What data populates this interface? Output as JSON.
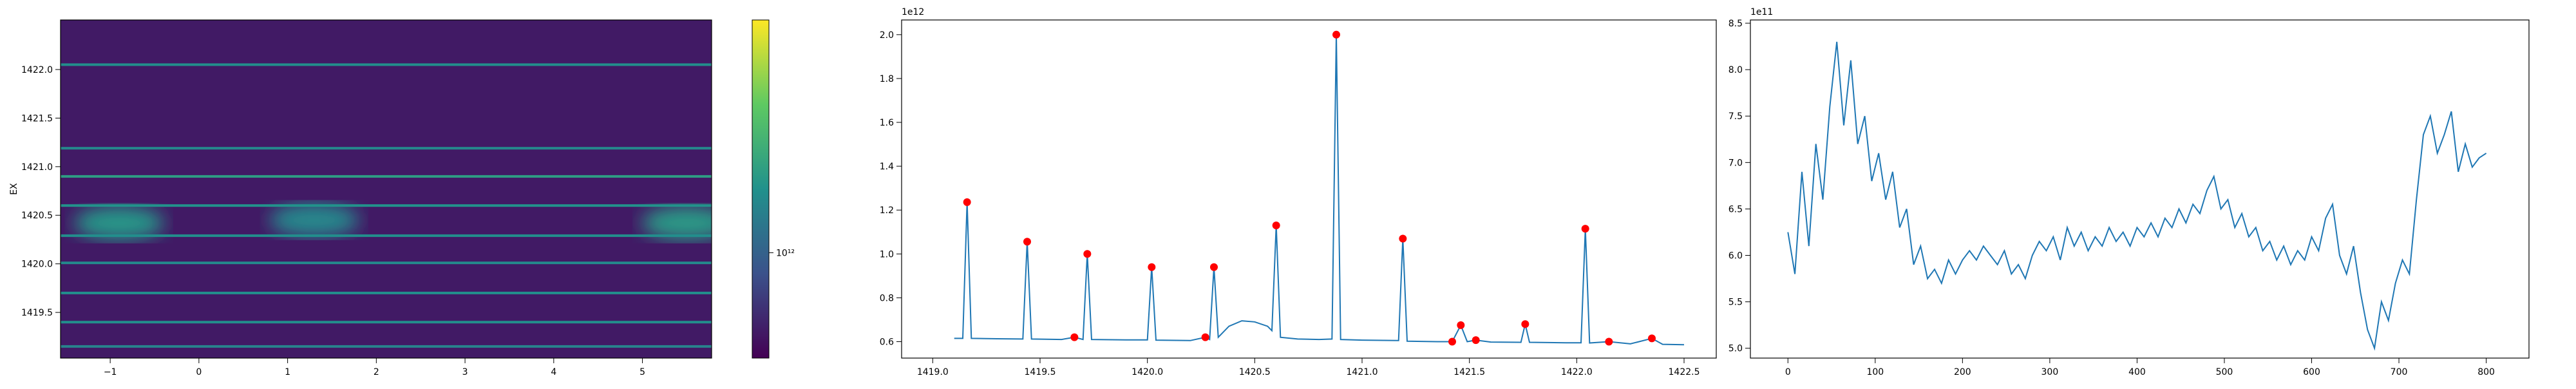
{
  "chart_data": [
    {
      "type": "heatmap",
      "ylabel": "EX",
      "xlim": [
        -1.56,
        5.78
      ],
      "xticks": [
        {
          "value": -1,
          "label": "−1"
        },
        0,
        1,
        2,
        3,
        4,
        5
      ],
      "ylim": [
        1419.03,
        1422.51
      ],
      "yticks": [
        1419.5,
        {
          "value": 1420,
          "label": "1420.0"
        },
        1420.5,
        {
          "value": 1421,
          "label": "1421.0"
        },
        1421.5,
        {
          "value": 1422,
          "label": "1422.0"
        }
      ],
      "background": 300000000000,
      "bands": {
        "y": [
          1419.15,
          1419.4,
          1419.7,
          1420.01,
          1420.29,
          1420.6,
          1420.9,
          1421.19,
          1422.05
        ],
        "values": [
          2000000000000,
          2500000000000,
          2500000000000,
          2300000000000,
          2500000000000,
          2700000000000,
          3500000000000,
          2200000000000,
          2500000000000
        ]
      },
      "blobs": {
        "x": [
          -0.9,
          1.3,
          5.5
        ],
        "y": [
          1420.42,
          1420.45,
          1420.42
        ],
        "values": [
          3000000000000,
          2200000000000,
          3200000000000
        ]
      },
      "colorbar": {
        "log": true,
        "lim": [
          200000000000,
          35000000000000
        ],
        "ticks": [
          {
            "value": 1000000000000,
            "label": "10¹²"
          }
        ]
      }
    },
    {
      "type": "line",
      "offset_label": "1e12",
      "xlim": [
        1418.855,
        1422.65
      ],
      "xticks": [
        {
          "value": 1419,
          "label": "1419.0"
        },
        1419.5,
        {
          "value": 1420,
          "label": "1420.0"
        },
        1420.5,
        {
          "value": 1421,
          "label": "1421.0"
        },
        1421.5,
        {
          "value": 1422,
          "label": "1422.0"
        },
        1422.5
      ],
      "ylim": [
        0.525,
        2.067
      ],
      "yticks": [
        0.6,
        0.8,
        {
          "value": 1,
          "label": "1.0"
        },
        1.2,
        1.4,
        1.6,
        1.8,
        {
          "value": 2,
          "label": "2.0"
        }
      ],
      "series": [
        {
          "color": "#1f77b4",
          "x": [
            1419.1,
            1419.14,
            1419.16,
            1419.18,
            1419.3,
            1419.42,
            1419.44,
            1419.46,
            1419.6,
            1419.66,
            1419.7,
            1419.72,
            1419.74,
            1419.9,
            1420.0,
            1420.02,
            1420.04,
            1420.2,
            1420.27,
            1420.29,
            1420.31,
            1420.33,
            1420.38,
            1420.44,
            1420.5,
            1420.56,
            1420.58,
            1420.6,
            1420.62,
            1420.7,
            1420.8,
            1420.86,
            1420.88,
            1420.9,
            1421.0,
            1421.17,
            1421.19,
            1421.21,
            1421.35,
            1421.42,
            1421.46,
            1421.49,
            1421.53,
            1421.6,
            1421.74,
            1421.76,
            1421.78,
            1421.95,
            1422.02,
            1422.04,
            1422.06,
            1422.15,
            1422.25,
            1422.35,
            1422.4,
            1422.5
          ],
          "values": [
            0.615,
            0.615,
            1.236,
            0.615,
            0.613,
            0.612,
            1.056,
            0.612,
            0.61,
            0.62,
            0.61,
            1.0,
            0.61,
            0.608,
            0.608,
            0.94,
            0.607,
            0.605,
            0.62,
            0.61,
            0.94,
            0.62,
            0.67,
            0.695,
            0.69,
            0.67,
            0.65,
            1.13,
            0.62,
            0.612,
            0.61,
            0.612,
            2.0,
            0.61,
            0.607,
            0.605,
            1.07,
            0.602,
            0.6,
            0.6,
            0.675,
            0.6,
            0.607,
            0.598,
            0.597,
            0.68,
            0.597,
            0.595,
            0.595,
            1.115,
            0.594,
            0.6,
            0.59,
            0.615,
            0.588,
            0.586
          ]
        }
      ],
      "markers": {
        "color": "#ff0000",
        "x": [
          1419.16,
          1419.44,
          1419.66,
          1419.72,
          1420.02,
          1420.27,
          1420.31,
          1420.6,
          1420.88,
          1421.19,
          1421.42,
          1421.46,
          1421.53,
          1421.76,
          1422.04,
          1422.15,
          1422.35
        ],
        "values": [
          1.236,
          1.056,
          0.62,
          1.0,
          0.94,
          0.62,
          0.94,
          1.13,
          2.0,
          1.07,
          0.6,
          0.675,
          0.607,
          0.68,
          1.115,
          0.6,
          0.615
        ]
      }
    },
    {
      "type": "line",
      "offset_label": "1e11",
      "xlim": [
        -43,
        849
      ],
      "xticks": [
        0,
        100,
        200,
        300,
        400,
        500,
        600,
        700,
        800
      ],
      "ylim": [
        4.894,
        8.535
      ],
      "yticks": [
        {
          "value": 5,
          "label": "5.0"
        },
        5.5,
        {
          "value": 6,
          "label": "6.0"
        },
        6.5,
        {
          "value": 7,
          "label": "7.0"
        },
        7.5,
        {
          "value": 8,
          "label": "8.0"
        },
        8.5
      ],
      "series": [
        {
          "color": "#1f77b4",
          "x": [
            0,
            8,
            16,
            24,
            32,
            40,
            48,
            56,
            64,
            72,
            80,
            88,
            96,
            104,
            112,
            120,
            128,
            136,
            144,
            152,
            160,
            168,
            176,
            184,
            192,
            200,
            208,
            216,
            224,
            232,
            240,
            248,
            256,
            264,
            272,
            280,
            288,
            296,
            304,
            312,
            320,
            328,
            336,
            344,
            352,
            360,
            368,
            376,
            384,
            392,
            400,
            408,
            416,
            424,
            432,
            440,
            448,
            456,
            464,
            472,
            480,
            488,
            496,
            504,
            512,
            520,
            528,
            536,
            544,
            552,
            560,
            568,
            576,
            584,
            592,
            600,
            608,
            616,
            624,
            632,
            640,
            648,
            656,
            664,
            672,
            680,
            688,
            696,
            704,
            712,
            720,
            728,
            736,
            744,
            752,
            760,
            768,
            776,
            784,
            792,
            800
          ],
          "values": [
            6.25,
            5.8,
            6.9,
            6.1,
            7.2,
            6.6,
            7.6,
            8.3,
            7.4,
            8.1,
            7.2,
            7.5,
            6.8,
            7.1,
            6.6,
            6.9,
            6.3,
            6.5,
            5.9,
            6.1,
            5.75,
            5.85,
            5.7,
            5.95,
            5.8,
            5.95,
            6.05,
            5.95,
            6.1,
            6.0,
            5.9,
            6.05,
            5.8,
            5.9,
            5.75,
            6.0,
            6.15,
            6.05,
            6.2,
            5.95,
            6.3,
            6.1,
            6.25,
            6.05,
            6.2,
            6.1,
            6.3,
            6.15,
            6.25,
            6.1,
            6.3,
            6.2,
            6.35,
            6.2,
            6.4,
            6.3,
            6.5,
            6.35,
            6.55,
            6.45,
            6.7,
            6.85,
            6.5,
            6.6,
            6.3,
            6.45,
            6.2,
            6.3,
            6.05,
            6.15,
            5.95,
            6.1,
            5.9,
            6.05,
            5.95,
            6.2,
            6.05,
            6.4,
            6.55,
            6.0,
            5.8,
            6.1,
            5.6,
            5.2,
            5.0,
            5.5,
            5.3,
            5.7,
            5.95,
            5.8,
            6.6,
            7.3,
            7.5,
            7.1,
            7.3,
            7.55,
            6.9,
            7.2,
            6.95,
            7.05,
            7.1
          ]
        }
      ]
    }
  ]
}
